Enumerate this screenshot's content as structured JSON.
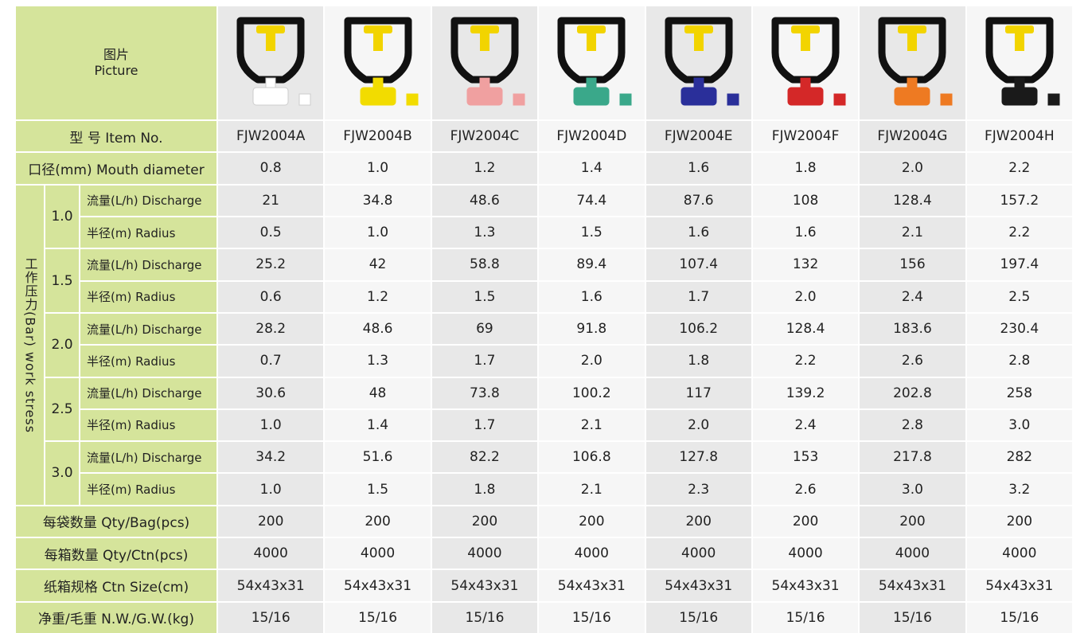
{
  "table": {
    "picture_header": {
      "zh": "图片",
      "en": "Picture"
    },
    "item_no_header": "型 号 Item No.",
    "items": [
      "FJW2004A",
      "FJW2004B",
      "FJW2004C",
      "FJW2004D",
      "FJW2004E",
      "FJW2004F",
      "FJW2004G",
      "FJW2004H"
    ],
    "mouth_header": "口径(mm) Mouth diameter",
    "mouth_diameter": [
      "0.8",
      "1.0",
      "1.2",
      "1.4",
      "1.6",
      "1.8",
      "2.0",
      "2.2"
    ],
    "pressure_header": "工作压力(Bar) work stress",
    "pressure_groups": [
      {
        "pressure": "1.0",
        "discharge_label": "流量(L/h) Discharge",
        "radius_label": "半径(m) Radius",
        "discharge": [
          "21",
          "34.8",
          "48.6",
          "74.4",
          "87.6",
          "108",
          "128.4",
          "157.2"
        ],
        "radius": [
          "0.5",
          "1.0",
          "1.3",
          "1.5",
          "1.6",
          "1.6",
          "2.1",
          "2.2"
        ]
      },
      {
        "pressure": "1.5",
        "discharge_label": "流量(L/h) Discharge",
        "radius_label": "半径(m) Radius",
        "discharge": [
          "25.2",
          "42",
          "58.8",
          "89.4",
          "107.4",
          "132",
          "156",
          "197.4"
        ],
        "radius": [
          "0.6",
          "1.2",
          "1.5",
          "1.6",
          "1.7",
          "2.0",
          "2.4",
          "2.5"
        ]
      },
      {
        "pressure": "2.0",
        "discharge_label": "流量(L/h) Discharge",
        "radius_label": "半径(m) Radius",
        "discharge": [
          "28.2",
          "48.6",
          "69",
          "91.8",
          "106.2",
          "128.4",
          "183.6",
          "230.4"
        ],
        "radius": [
          "0.7",
          "1.3",
          "1.7",
          "2.0",
          "1.8",
          "2.2",
          "2.6",
          "2.8"
        ]
      },
      {
        "pressure": "2.5",
        "discharge_label": "流量(L/h) Discharge",
        "radius_label": "半径(m) Radius",
        "discharge": [
          "30.6",
          "48",
          "73.8",
          "100.2",
          "117",
          "139.2",
          "202.8",
          "258"
        ],
        "radius": [
          "1.0",
          "1.4",
          "1.7",
          "2.1",
          "2.0",
          "2.4",
          "2.8",
          "3.0"
        ]
      },
      {
        "pressure": "3.0",
        "discharge_label": "流量(L/h) Discharge",
        "radius_label": "半径(m) Radius",
        "discharge": [
          "34.2",
          "51.6",
          "82.2",
          "106.8",
          "127.8",
          "153",
          "217.8",
          "282"
        ],
        "radius": [
          "1.0",
          "1.5",
          "1.8",
          "2.1",
          "2.3",
          "2.6",
          "3.0",
          "3.2"
        ]
      }
    ],
    "footer_rows": [
      {
        "label": "每袋数量 Qty/Bag(pcs)",
        "values": [
          "200",
          "200",
          "200",
          "200",
          "200",
          "200",
          "200",
          "200"
        ]
      },
      {
        "label": "每箱数量 Qty/Ctn(pcs)",
        "values": [
          "4000",
          "4000",
          "4000",
          "4000",
          "4000",
          "4000",
          "4000",
          "4000"
        ]
      },
      {
        "label": "纸箱规格 Ctn Size(cm)",
        "values": [
          "54x43x31",
          "54x43x31",
          "54x43x31",
          "54x43x31",
          "54x43x31",
          "54x43x31",
          "54x43x31",
          "54x43x31"
        ]
      },
      {
        "label": "净重/毛重 N.W./G.W.(kg)",
        "values": [
          "15/16",
          "15/16",
          "15/16",
          "15/16",
          "15/16",
          "15/16",
          "15/16",
          "15/16"
        ]
      }
    ]
  }
}
